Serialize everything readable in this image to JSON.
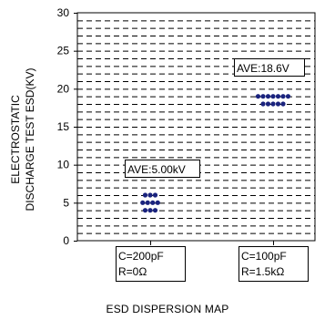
{
  "chart_data": {
    "type": "scatter",
    "title": "",
    "xlabel": "ESD DISPERSION MAP",
    "ylabel": [
      "ELECTROSTATIC",
      "DISCHARGE TEST ESD(KV)"
    ],
    "ylim": [
      0,
      30
    ],
    "yticks": [
      0,
      5,
      10,
      15,
      20,
      25,
      30
    ],
    "grid": "horizontal dashed, every 1 kV",
    "marker_color": "#1a237e",
    "categories": [
      {
        "line1": "C=200pF",
        "line2": "R=0Ω"
      },
      {
        "line1": "C=100pF",
        "line2": "R=1.5kΩ"
      }
    ],
    "series": [
      {
        "category_index": 0,
        "annotation": "AVE:5.00kV",
        "points": [
          {
            "y": 6,
            "count": 3
          },
          {
            "y": 5,
            "count": 4
          },
          {
            "y": 4,
            "count": 3
          }
        ]
      },
      {
        "category_index": 1,
        "annotation": "AVE:18.6V",
        "points": [
          {
            "y": 19,
            "count": 7
          },
          {
            "y": 18,
            "count": 5
          }
        ]
      }
    ]
  }
}
